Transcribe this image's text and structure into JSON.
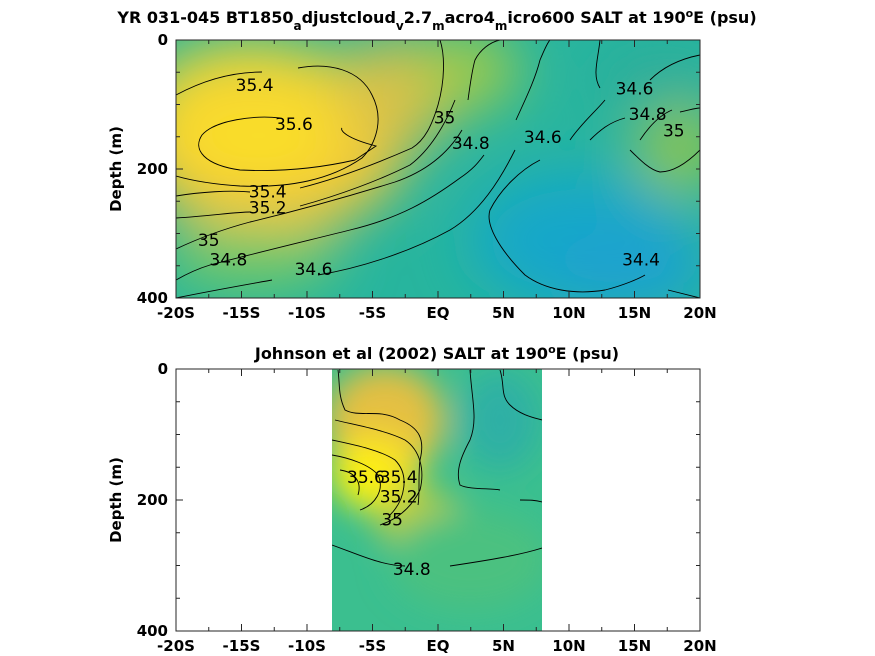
{
  "chart_data": [
    {
      "type": "heatmap",
      "title_main": "YR 031-045 BT1850",
      "title_sub1": "a",
      "title_mid1": "djustcloud",
      "title_sub2": "v",
      "title_mid2": "2.7",
      "title_sub3": "m",
      "title_mid3": "acro4",
      "title_sub4": "m",
      "title_mid4": "icro600 SALT at 190",
      "title_sup": "o",
      "title_end": "E (psu)",
      "ylabel": "Depth (m)",
      "xlim": [
        -20,
        20
      ],
      "ylim": [
        400,
        0
      ],
      "x_ticks": [
        -20,
        -15,
        -10,
        -5,
        0,
        5,
        10,
        15,
        20
      ],
      "x_tick_labels": [
        "-20S",
        "-15S",
        "-10S",
        "-5S",
        "EQ",
        "5N",
        "10N",
        "15N",
        "20N"
      ],
      "y_ticks": [
        0,
        200,
        400
      ],
      "y_tick_labels": [
        "0",
        "200",
        "400"
      ],
      "contour_labels": [
        {
          "text": "35.4",
          "lat": -14,
          "depth": 70
        },
        {
          "text": "35.6",
          "lat": -11,
          "depth": 130
        },
        {
          "text": "35",
          "lat": 0.5,
          "depth": 120
        },
        {
          "text": "34.8",
          "lat": 2.5,
          "depth": 160
        },
        {
          "text": "34.6",
          "lat": 8,
          "depth": 150
        },
        {
          "text": "34.6",
          "lat": 15,
          "depth": 75
        },
        {
          "text": "34.8",
          "lat": 16,
          "depth": 115
        },
        {
          "text": "35",
          "lat": 18,
          "depth": 140
        },
        {
          "text": "35.4",
          "lat": -13,
          "depth": 235
        },
        {
          "text": "35.2",
          "lat": -13,
          "depth": 260
        },
        {
          "text": "35",
          "lat": -17.5,
          "depth": 310
        },
        {
          "text": "34.8",
          "lat": -16,
          "depth": 340
        },
        {
          "text": "34.6",
          "lat": -9.5,
          "depth": 355
        },
        {
          "text": "34.4",
          "lat": 15.5,
          "depth": 340
        }
      ]
    },
    {
      "type": "heatmap",
      "title_main": "Johnson et al (2002) SALT at 190",
      "title_sup": "o",
      "title_end": "E (psu)",
      "ylabel": "Depth (m)",
      "xlim": [
        -20,
        20
      ],
      "ylim": [
        400,
        0
      ],
      "data_lat_range": [
        -8,
        8
      ],
      "x_ticks": [
        -20,
        -15,
        -10,
        -5,
        0,
        5,
        10,
        15,
        20
      ],
      "x_tick_labels": [
        "-20S",
        "-15S",
        "-10S",
        "-5S",
        "EQ",
        "5N",
        "10N",
        "15N",
        "20N"
      ],
      "y_ticks": [
        0,
        200,
        400
      ],
      "y_tick_labels": [
        "0",
        "200",
        "400"
      ],
      "contour_labels": [
        {
          "text": "34.8",
          "lat": -2,
          "depth": 305
        },
        {
          "text": "35",
          "lat": -3.5,
          "depth": 230
        },
        {
          "text": "35.2",
          "lat": -3,
          "depth": 195
        },
        {
          "text": "35.4",
          "lat": -3,
          "depth": 165
        },
        {
          "text": "35.6",
          "lat": -5.5,
          "depth": 165
        }
      ]
    }
  ]
}
